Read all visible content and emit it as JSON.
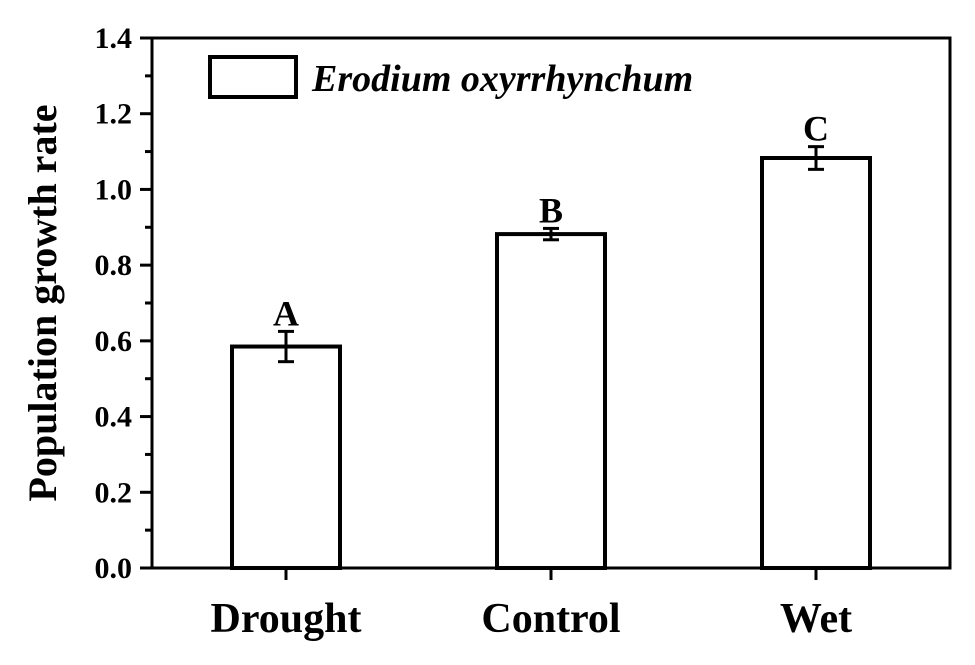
{
  "chart_data": {
    "type": "bar",
    "categories": [
      "Drought",
      "Control",
      "Wet"
    ],
    "series": [
      {
        "name": "Erodium oxyrrhynchum",
        "values": [
          0.585,
          0.882,
          1.083
        ],
        "errors": [
          0.04,
          0.015,
          0.03
        ],
        "significance": [
          "A",
          "B",
          "C"
        ]
      }
    ],
    "ylabel": "Population growth rate",
    "xlabel": "",
    "ylim": [
      0.0,
      1.4
    ],
    "yticks": [
      "0.0",
      "0.2",
      "0.4",
      "0.6",
      "0.8",
      "1.0",
      "1.2",
      "1.4"
    ],
    "legend": {
      "position": "top-left",
      "label": "Erodium oxyrrhynchum"
    },
    "grid": false,
    "colors": {
      "bar_fill": "#ffffff",
      "bar_stroke": "#000000",
      "axis": "#000000"
    }
  }
}
